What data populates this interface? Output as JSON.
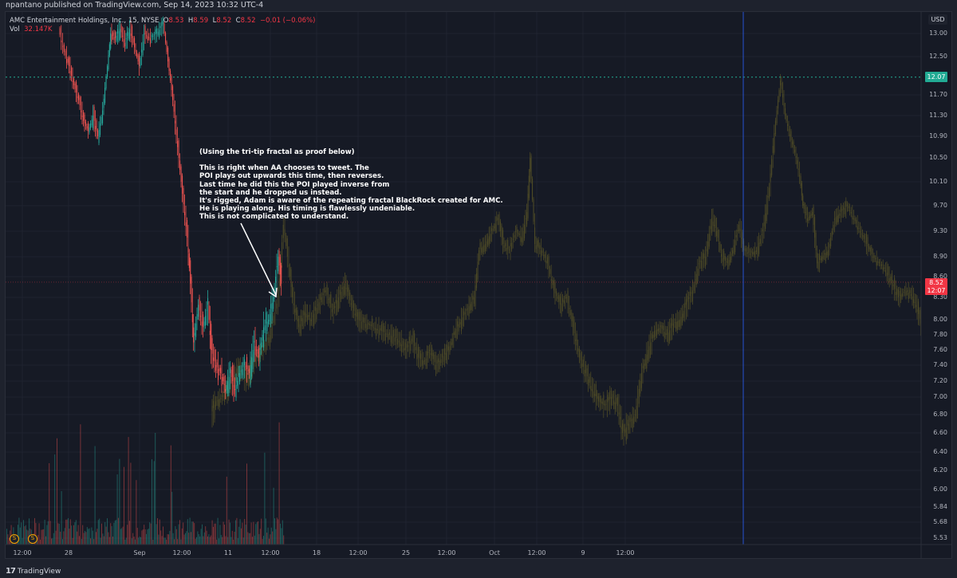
{
  "publish_info": "npantano published on TradingView.com, Sep 14, 2023 10:32 UTC-4",
  "legend": {
    "symbol": "AMC Entertainment Holdings, Inc., 15, NYSE",
    "open_label": "O",
    "open": "8.53",
    "high_label": "H",
    "high": "8.59",
    "low_label": "L",
    "low": "8.52",
    "close_label": "C",
    "close": "8.52",
    "change": "−0.01 (−0.06%)",
    "vol_label": "Vol",
    "vol": "32.147K"
  },
  "yaxis": {
    "currency": "USD",
    "ticks": [
      "13.00",
      "12.50",
      "11.70",
      "11.30",
      "10.90",
      "10.50",
      "10.10",
      "9.70",
      "9.30",
      "8.90",
      "8.60",
      "8.30",
      "8.00",
      "7.80",
      "7.60",
      "7.40",
      "7.20",
      "7.00",
      "6.80",
      "6.60",
      "6.40",
      "6.20",
      "6.00",
      "5.84",
      "5.68",
      "5.53"
    ],
    "tick_y": [
      42,
      71,
      119,
      145,
      171,
      198,
      228,
      258,
      290,
      322,
      347,
      373,
      401,
      420,
      439,
      458,
      478,
      498,
      520,
      543,
      567,
      590,
      614,
      636,
      655,
      675
    ],
    "green_tag": "12.07",
    "red_tag_price": "8.52",
    "red_tag_time": "12:07"
  },
  "xaxis": {
    "ticks": [
      {
        "label": "12:00",
        "x": 28
      },
      {
        "label": "28",
        "x": 86
      },
      {
        "label": "Sep",
        "x": 175
      },
      {
        "label": "12:00",
        "x": 228
      },
      {
        "label": "11",
        "x": 286
      },
      {
        "label": "12:00",
        "x": 339
      },
      {
        "label": "18",
        "x": 397
      },
      {
        "label": "12:00",
        "x": 449
      },
      {
        "label": "25",
        "x": 509
      },
      {
        "label": "12:00",
        "x": 560
      },
      {
        "label": "Oct",
        "x": 620
      },
      {
        "label": "12:00",
        "x": 673
      },
      {
        "label": "9",
        "x": 731
      },
      {
        "label": "12:00",
        "x": 784
      }
    ]
  },
  "annotation": {
    "title": "(Using the tri-tip fractal as proof below)",
    "lines": [
      "This is right when AA chooses to tweet. The",
      "POI plays out upwards this time, then reverses.",
      "Last time he did this the POI played inverse from",
      "the start and he dropped us instead.",
      "It's rigged, Adam is aware of the repeating fractal BlackRock created for AMC.",
      "He is playing along. His timing is flawlessly undeniable.",
      "This is not complicated to understand."
    ]
  },
  "dividend_badges": [
    {
      "label": "S",
      "x": 18
    },
    {
      "label": "S",
      "x": 41
    }
  ],
  "footer": {
    "brand": "TradingView"
  },
  "colors": {
    "up": "#26a69a",
    "down": "#ef5350",
    "projection": "#4d4a26",
    "background": "#161a25",
    "grid": "#1f2330",
    "vertical_marker": "#2962ff"
  },
  "chart_data": {
    "type": "candlestick",
    "title": "AMC Entertainment Holdings, Inc., 15, NYSE",
    "xlabel": "",
    "ylabel": "USD",
    "ylim": [
      5.53,
      13.2
    ],
    "grid": true,
    "notes": "Actual 15m candles (red/green) Aug 25 – Sep 14 overlaid with a dim olive 'fractal' projection extending to mid-October; dotted horizontal line at 12.07; blue vertical marker near x=932px; volume histogram at bottom.",
    "actual_path": [
      {
        "x": 75,
        "p": 13.1
      },
      {
        "x": 82,
        "p": 12.6
      },
      {
        "x": 88,
        "p": 12.3
      },
      {
        "x": 94,
        "p": 11.9
      },
      {
        "x": 100,
        "p": 11.6
      },
      {
        "x": 106,
        "p": 11.2
      },
      {
        "x": 112,
        "p": 11.0
      },
      {
        "x": 118,
        "p": 11.3
      },
      {
        "x": 124,
        "p": 10.9
      },
      {
        "x": 130,
        "p": 11.4
      },
      {
        "x": 136,
        "p": 12.3
      },
      {
        "x": 140,
        "p": 13.0
      },
      {
        "x": 146,
        "p": 12.9
      },
      {
        "x": 152,
        "p": 13.1
      },
      {
        "x": 158,
        "p": 12.8
      },
      {
        "x": 164,
        "p": 13.1
      },
      {
        "x": 170,
        "p": 12.7
      },
      {
        "x": 176,
        "p": 12.3
      },
      {
        "x": 182,
        "p": 13.0
      },
      {
        "x": 190,
        "p": 12.9
      },
      {
        "x": 198,
        "p": 13.0
      },
      {
        "x": 206,
        "p": 13.2
      },
      {
        "x": 218,
        "p": 11.6
      },
      {
        "x": 224,
        "p": 10.7
      },
      {
        "x": 230,
        "p": 9.9
      },
      {
        "x": 236,
        "p": 9.2
      },
      {
        "x": 240,
        "p": 8.5
      },
      {
        "x": 244,
        "p": 7.7
      },
      {
        "x": 250,
        "p": 8.2
      },
      {
        "x": 256,
        "p": 7.9
      },
      {
        "x": 262,
        "p": 8.2
      },
      {
        "x": 266,
        "p": 7.6
      },
      {
        "x": 272,
        "p": 7.4
      },
      {
        "x": 278,
        "p": 7.3
      },
      {
        "x": 284,
        "p": 7.1
      },
      {
        "x": 290,
        "p": 7.3
      },
      {
        "x": 296,
        "p": 7.1
      },
      {
        "x": 302,
        "p": 7.3
      },
      {
        "x": 308,
        "p": 7.4
      },
      {
        "x": 314,
        "p": 7.3
      },
      {
        "x": 320,
        "p": 7.7
      },
      {
        "x": 326,
        "p": 7.5
      },
      {
        "x": 332,
        "p": 7.9
      },
      {
        "x": 338,
        "p": 8.0
      },
      {
        "x": 344,
        "p": 8.3
      },
      {
        "x": 350,
        "p": 8.9
      },
      {
        "x": 354,
        "p": 8.5
      }
    ],
    "projection_path": [
      {
        "x": 266,
        "p": 6.8
      },
      {
        "x": 272,
        "p": 6.95
      },
      {
        "x": 280,
        "p": 7.0
      },
      {
        "x": 290,
        "p": 7.15
      },
      {
        "x": 300,
        "p": 7.4
      },
      {
        "x": 310,
        "p": 7.2
      },
      {
        "x": 320,
        "p": 7.45
      },
      {
        "x": 330,
        "p": 7.6
      },
      {
        "x": 340,
        "p": 7.8
      },
      {
        "x": 350,
        "p": 8.3
      },
      {
        "x": 357,
        "p": 9.4
      },
      {
        "x": 362,
        "p": 8.9
      },
      {
        "x": 368,
        "p": 8.3
      },
      {
        "x": 376,
        "p": 7.9
      },
      {
        "x": 384,
        "p": 8.1
      },
      {
        "x": 392,
        "p": 8.0
      },
      {
        "x": 400,
        "p": 8.2
      },
      {
        "x": 410,
        "p": 8.4
      },
      {
        "x": 418,
        "p": 8.1
      },
      {
        "x": 426,
        "p": 8.3
      },
      {
        "x": 434,
        "p": 8.5
      },
      {
        "x": 442,
        "p": 8.2
      },
      {
        "x": 450,
        "p": 8.0
      },
      {
        "x": 460,
        "p": 7.95
      },
      {
        "x": 470,
        "p": 7.9
      },
      {
        "x": 480,
        "p": 7.85
      },
      {
        "x": 490,
        "p": 7.8
      },
      {
        "x": 500,
        "p": 7.75
      },
      {
        "x": 510,
        "p": 7.6
      },
      {
        "x": 518,
        "p": 7.75
      },
      {
        "x": 526,
        "p": 7.5
      },
      {
        "x": 534,
        "p": 7.45
      },
      {
        "x": 540,
        "p": 7.6
      },
      {
        "x": 548,
        "p": 7.4
      },
      {
        "x": 556,
        "p": 7.5
      },
      {
        "x": 564,
        "p": 7.6
      },
      {
        "x": 572,
        "p": 7.85
      },
      {
        "x": 580,
        "p": 8.0
      },
      {
        "x": 588,
        "p": 8.15
      },
      {
        "x": 596,
        "p": 8.3
      },
      {
        "x": 602,
        "p": 9.0
      },
      {
        "x": 610,
        "p": 9.1
      },
      {
        "x": 618,
        "p": 9.3
      },
      {
        "x": 626,
        "p": 9.5
      },
      {
        "x": 632,
        "p": 9.1
      },
      {
        "x": 640,
        "p": 9.0
      },
      {
        "x": 648,
        "p": 9.3
      },
      {
        "x": 656,
        "p": 9.2
      },
      {
        "x": 662,
        "p": 9.6
      },
      {
        "x": 666,
        "p": 10.5
      },
      {
        "x": 672,
        "p": 9.1
      },
      {
        "x": 680,
        "p": 9.0
      },
      {
        "x": 688,
        "p": 8.8
      },
      {
        "x": 696,
        "p": 8.4
      },
      {
        "x": 704,
        "p": 8.2
      },
      {
        "x": 712,
        "p": 8.3
      },
      {
        "x": 720,
        "p": 7.9
      },
      {
        "x": 728,
        "p": 7.5
      },
      {
        "x": 736,
        "p": 7.3
      },
      {
        "x": 744,
        "p": 7.1
      },
      {
        "x": 752,
        "p": 6.95
      },
      {
        "x": 760,
        "p": 6.9
      },
      {
        "x": 768,
        "p": 7.0
      },
      {
        "x": 776,
        "p": 6.9
      },
      {
        "x": 782,
        "p": 6.6
      },
      {
        "x": 790,
        "p": 6.7
      },
      {
        "x": 798,
        "p": 6.8
      },
      {
        "x": 806,
        "p": 7.3
      },
      {
        "x": 814,
        "p": 7.6
      },
      {
        "x": 822,
        "p": 7.85
      },
      {
        "x": 830,
        "p": 7.9
      },
      {
        "x": 838,
        "p": 7.8
      },
      {
        "x": 846,
        "p": 7.95
      },
      {
        "x": 854,
        "p": 8.0
      },
      {
        "x": 862,
        "p": 8.2
      },
      {
        "x": 870,
        "p": 8.4
      },
      {
        "x": 878,
        "p": 8.8
      },
      {
        "x": 886,
        "p": 8.9
      },
      {
        "x": 894,
        "p": 9.5
      },
      {
        "x": 900,
        "p": 9.3
      },
      {
        "x": 906,
        "p": 8.9
      },
      {
        "x": 914,
        "p": 8.8
      },
      {
        "x": 920,
        "p": 9.0
      },
      {
        "x": 928,
        "p": 9.4
      },
      {
        "x": 934,
        "p": 9.0
      },
      {
        "x": 942,
        "p": 8.95
      },
      {
        "x": 950,
        "p": 9.0
      },
      {
        "x": 958,
        "p": 9.3
      },
      {
        "x": 966,
        "p": 10.0
      },
      {
        "x": 974,
        "p": 11.2
      },
      {
        "x": 980,
        "p": 12.0
      },
      {
        "x": 986,
        "p": 11.3
      },
      {
        "x": 992,
        "p": 10.9
      },
      {
        "x": 998,
        "p": 10.6
      },
      {
        "x": 1004,
        "p": 10.2
      },
      {
        "x": 1008,
        "p": 9.7
      },
      {
        "x": 1014,
        "p": 9.5
      },
      {
        "x": 1020,
        "p": 9.6
      },
      {
        "x": 1026,
        "p": 8.8
      },
      {
        "x": 1032,
        "p": 8.9
      },
      {
        "x": 1040,
        "p": 9.0
      },
      {
        "x": 1048,
        "p": 9.5
      },
      {
        "x": 1056,
        "p": 9.6
      },
      {
        "x": 1064,
        "p": 9.7
      },
      {
        "x": 1072,
        "p": 9.5
      },
      {
        "x": 1080,
        "p": 9.3
      },
      {
        "x": 1088,
        "p": 9.1
      },
      {
        "x": 1096,
        "p": 8.9
      },
      {
        "x": 1104,
        "p": 8.8
      },
      {
        "x": 1112,
        "p": 8.7
      },
      {
        "x": 1120,
        "p": 8.5
      },
      {
        "x": 1128,
        "p": 8.3
      },
      {
        "x": 1136,
        "p": 8.4
      },
      {
        "x": 1144,
        "p": 8.35
      },
      {
        "x": 1150,
        "p": 8.2
      },
      {
        "x": 1156,
        "p": 7.95
      }
    ],
    "horizontal_line": 12.07,
    "last_price": 8.52
  }
}
